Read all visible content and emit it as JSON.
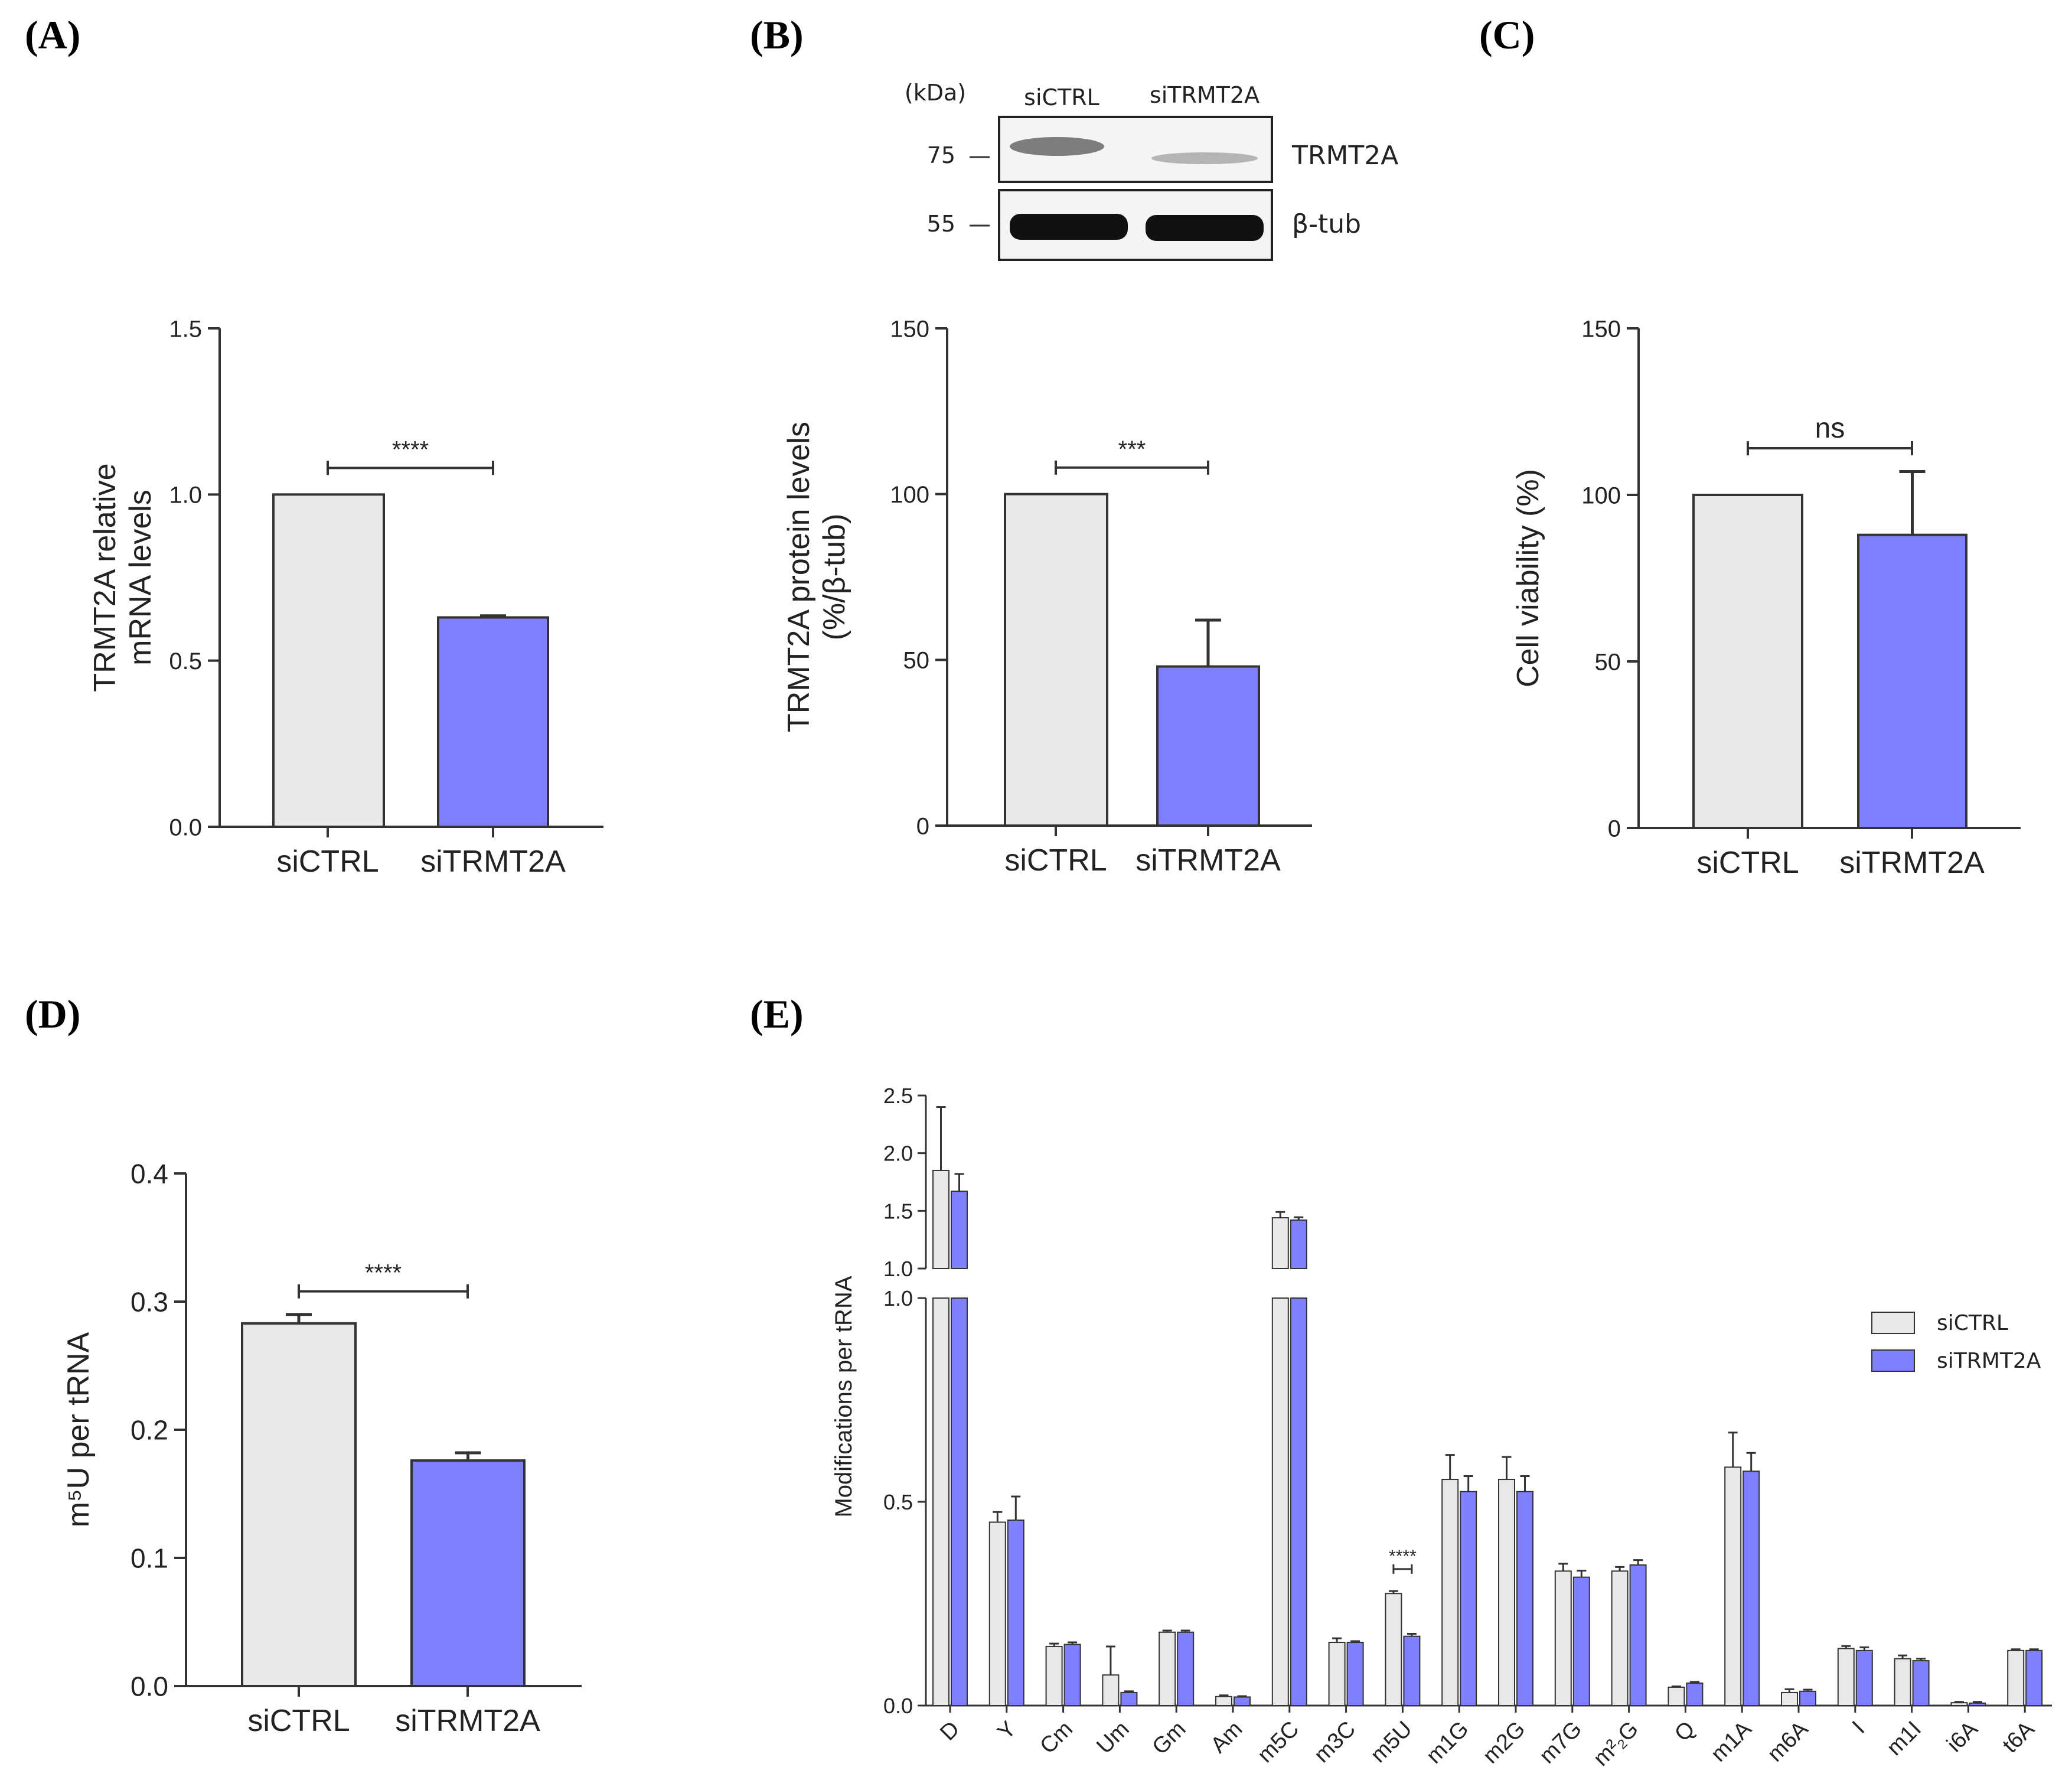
{
  "colors": {
    "ctrl": "#e8e8e8",
    "kd": "#7f80ff",
    "ink": "#222222",
    "edge": "#333333"
  },
  "panels": [
    {
      "id": "A",
      "letter": "(A)",
      "chart_data": {
        "type": "bar",
        "categories": [
          "siCTRL",
          "siTRMT2A"
        ],
        "values": [
          1.0,
          0.63
        ],
        "errors": [
          0,
          0.005
        ],
        "ylabel_lines": [
          "TRMT2A relative",
          "mRNA levels"
        ],
        "ylim": [
          0,
          1.5
        ],
        "yticks": [
          "0.0",
          "0.5",
          "1.0",
          "1.5"
        ],
        "significance": "****",
        "sig_y": 1.08
      }
    },
    {
      "id": "B",
      "letter": "(B)",
      "chart_data": {
        "type": "bar",
        "categories": [
          "siCTRL",
          "siTRMT2A"
        ],
        "values": [
          100,
          48
        ],
        "errors": [
          0,
          14
        ],
        "ylabel_lines": [
          "TRMT2A protein levels",
          "(%/β-tub)"
        ],
        "ylim": [
          0,
          150
        ],
        "yticks": [
          "0",
          "50",
          "100",
          "150"
        ],
        "significance": "***",
        "sig_y": 108
      }
    },
    {
      "id": "C",
      "letter": "(C)",
      "chart_data": {
        "type": "bar",
        "categories": [
          "siCTRL",
          "siTRMT2A"
        ],
        "values": [
          100,
          88
        ],
        "errors": [
          0,
          19
        ],
        "ylabel_lines": [
          "Cell viability (%)"
        ],
        "ylim": [
          0,
          150
        ],
        "yticks": [
          "0",
          "50",
          "100",
          "150"
        ],
        "significance": "ns",
        "sig_y": 114
      }
    },
    {
      "id": "D",
      "letter": "(D)",
      "chart_data": {
        "type": "bar",
        "categories": [
          "siCTRL",
          "siTRMT2A"
        ],
        "values": [
          0.283,
          0.176
        ],
        "errors": [
          0.007,
          0.006
        ],
        "ylabel_lines": [
          "m⁵U per tRNA"
        ],
        "ylim": [
          0,
          0.4
        ],
        "yticks": [
          "0.0",
          "0.1",
          "0.2",
          "0.3",
          "0.4"
        ],
        "significance": "****",
        "sig_y": 0.308
      }
    }
  ],
  "blot": {
    "kda_label": "(kDa)",
    "lane_labels": [
      "siCTRL",
      "siTRMT2A"
    ],
    "bands": [
      {
        "marker": "75",
        "protein": "TRMT2A"
      },
      {
        "marker": "55",
        "protein": "β-tub"
      }
    ]
  },
  "panel_e": {
    "letter": "(E)",
    "chart_data": {
      "type": "bar",
      "ylabel": "Modifications per tRNA",
      "y_axis_break": {
        "lower_range": [
          0,
          1.0
        ],
        "upper_range": [
          1.0,
          2.5
        ]
      },
      "yticks_lower": [
        "0.0",
        "0.5",
        "1.0"
      ],
      "yticks_upper": [
        "1.0",
        "1.5",
        "2.0",
        "2.5"
      ],
      "categories": [
        "D",
        "Y",
        "Cm",
        "Um",
        "Gm",
        "Am",
        "m5C",
        "m3C",
        "m5U",
        "m1G",
        "m2G",
        "m7G",
        "m²₂G",
        "Q",
        "m1A",
        "m6A",
        "I",
        "m1I",
        "i6A",
        "t6A"
      ],
      "series": [
        {
          "name": "siCTRL",
          "values": [
            1.85,
            0.45,
            0.145,
            0.075,
            0.18,
            0.022,
            1.44,
            0.155,
            0.275,
            0.555,
            0.555,
            0.33,
            0.33,
            0.045,
            0.585,
            0.032,
            0.14,
            0.115,
            0.007,
            0.135
          ],
          "errors": [
            0.55,
            0.025,
            0.007,
            0.07,
            0.004,
            0.003,
            0.05,
            0.01,
            0.006,
            0.06,
            0.055,
            0.018,
            0.01,
            0.002,
            0.085,
            0.008,
            0.006,
            0.008,
            0.002,
            0.003
          ]
        },
        {
          "name": "siTRMT2A",
          "values": [
            1.67,
            0.455,
            0.15,
            0.032,
            0.18,
            0.021,
            1.42,
            0.155,
            0.17,
            0.525,
            0.525,
            0.315,
            0.345,
            0.055,
            0.575,
            0.035,
            0.135,
            0.11,
            0.006,
            0.135
          ],
          "errors": [
            0.15,
            0.058,
            0.005,
            0.003,
            0.004,
            0.002,
            0.025,
            0.003,
            0.006,
            0.038,
            0.038,
            0.016,
            0.012,
            0.003,
            0.045,
            0.004,
            0.008,
            0.005,
            0.003,
            0.003
          ]
        }
      ],
      "significance": {
        "category": "m5U",
        "text": "****"
      },
      "legend": [
        {
          "label": "siCTRL"
        },
        {
          "label": "siTRMT2A"
        }
      ]
    }
  }
}
